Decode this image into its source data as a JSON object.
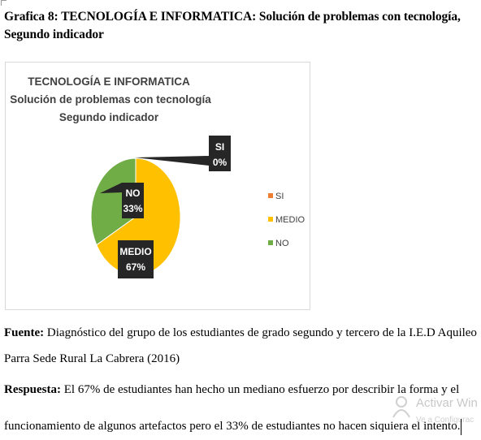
{
  "caption": {
    "line1": "Grafica 8: TECNOLOGÍA E INFORMATICA: Solución de problemas con tecnología,",
    "line2": "Segundo indicador"
  },
  "chart_data": {
    "type": "pie",
    "title": [
      "TECNOLOGÍA E INFORMATICA",
      "Solución de problemas con tecnología",
      "Segundo indicador"
    ],
    "categories": [
      "SI",
      "MEDIO",
      "NO"
    ],
    "values": [
      0,
      67,
      33
    ],
    "units": "%",
    "colors": [
      "#ed7d31",
      "#ffc000",
      "#70ad47"
    ],
    "data_labels": [
      {
        "name": "SI",
        "pct": "0%"
      },
      {
        "name": "MEDIO",
        "pct": "67%"
      },
      {
        "name": "NO",
        "pct": "33%"
      }
    ],
    "legend_position": "right"
  },
  "body": {
    "fuente_label": "Fuente:",
    "fuente_text_1": " Diagnóstico del grupo de los estudiantes de grado segundo y tercero de la I.E.D Aquileo",
    "fuente_text_2": "Parra Sede Rural La Cabrera (2016)",
    "respuesta_label": "Respuesta:",
    "respuesta_text_1": " El 67% de estudiantes han hecho un mediano esfuerzo por describir la forma y el",
    "respuesta_text_2": "funcionamiento de algunos artefactos pero el 33% de estudiantes no hacen siquiera el intento."
  },
  "watermark": {
    "title": "Activar Win",
    "subtitle": "Ve a Configurac"
  }
}
